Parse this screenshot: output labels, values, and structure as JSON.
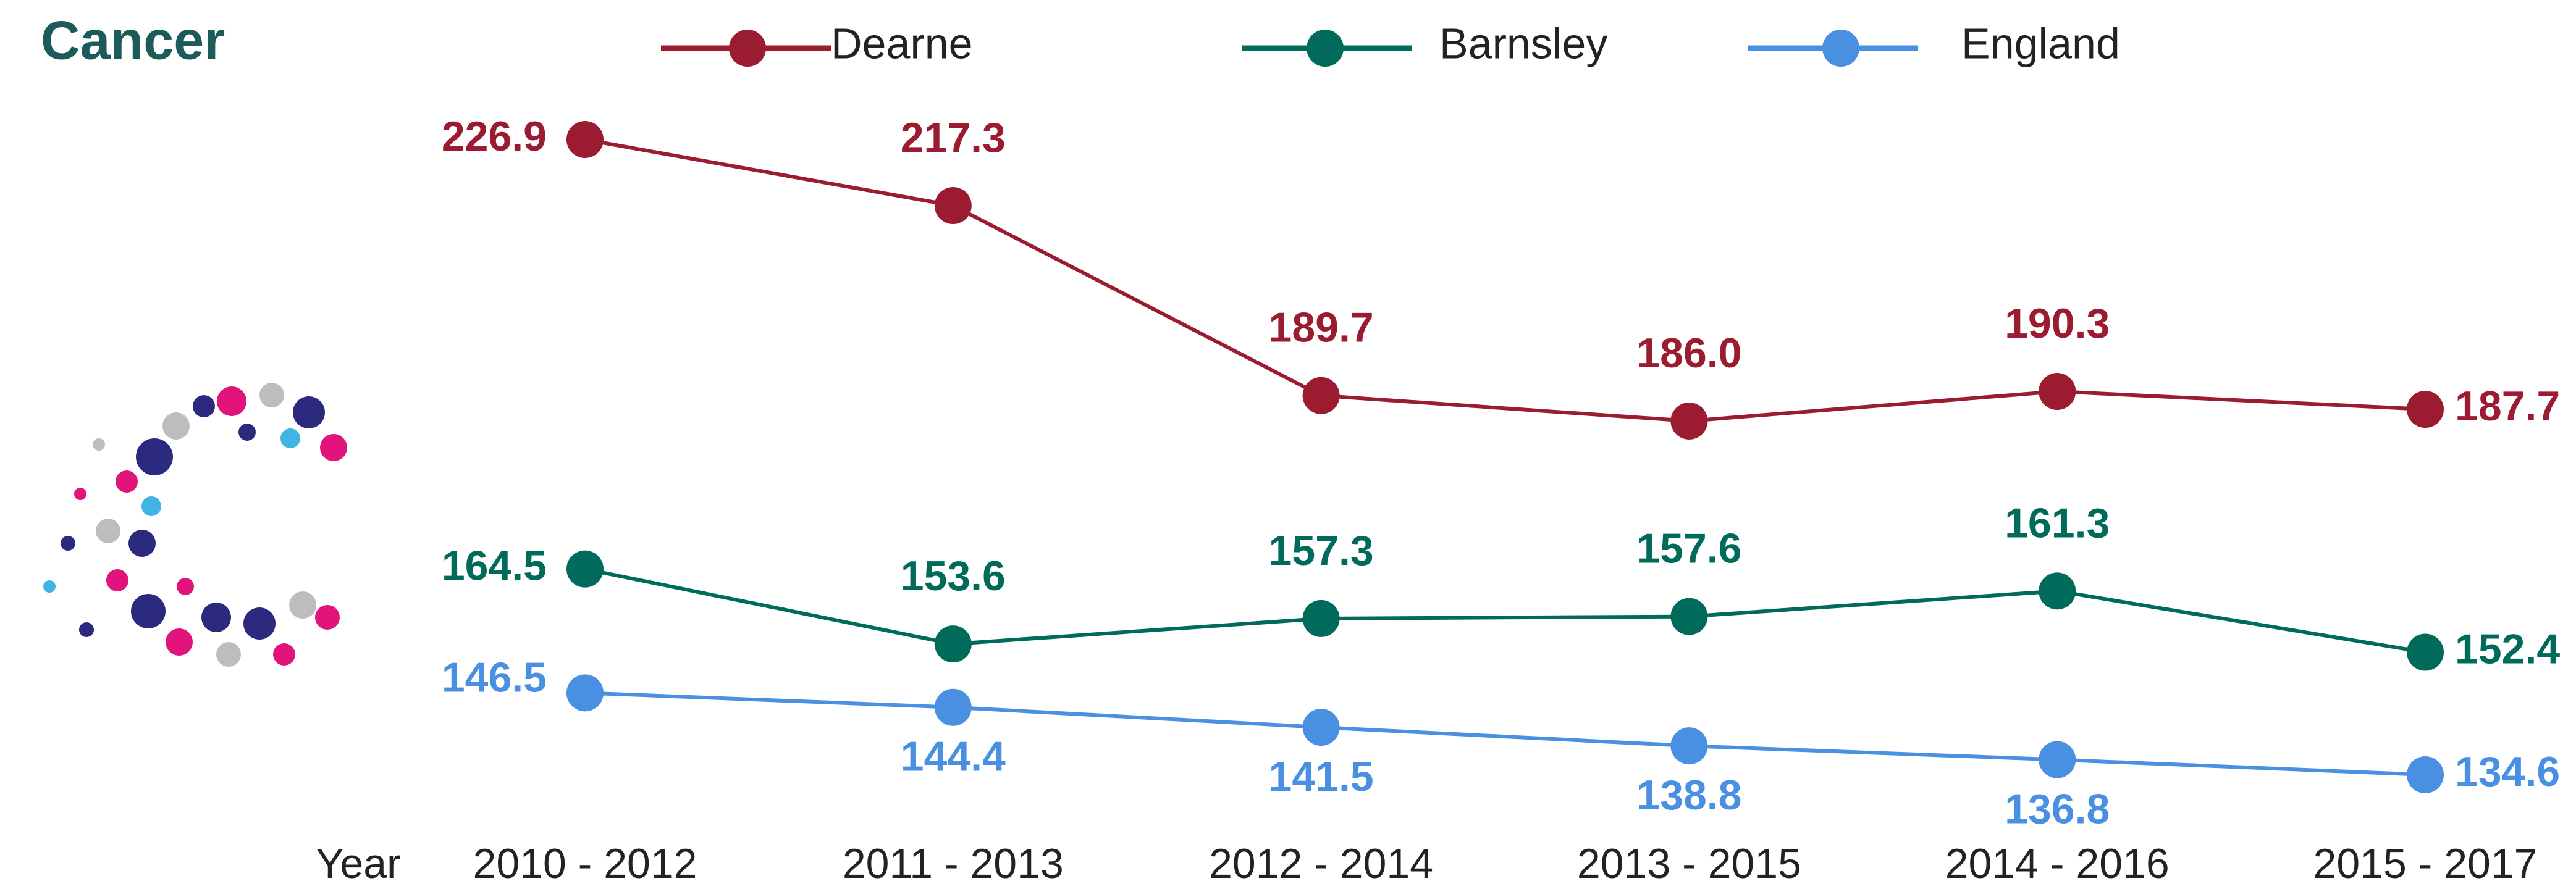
{
  "chart_data": {
    "type": "line",
    "title": "Cancer",
    "x_label": "Year",
    "categories": [
      "2010 - 2012",
      "2011 - 2013",
      "2012 - 2014",
      "2013 - 2015",
      "2014 - 2016",
      "2015 - 2017"
    ],
    "series": [
      {
        "name": "Dearne",
        "color": "#9b1c31",
        "values": [
          226.9,
          217.3,
          189.7,
          186.0,
          190.3,
          187.7
        ],
        "value_labels": [
          "226.9",
          "217.3",
          "189.7",
          "186.0",
          "190.3",
          "187.7"
        ]
      },
      {
        "name": "Barnsley",
        "color": "#006b5a",
        "values": [
          164.5,
          153.6,
          157.3,
          157.6,
          161.3,
          152.4
        ],
        "value_labels": [
          "164.5",
          "153.6",
          "157.3",
          "157.6",
          "161.3",
          "152.4"
        ]
      },
      {
        "name": "England",
        "color": "#4a90e2",
        "values": [
          146.5,
          144.4,
          141.5,
          138.8,
          136.8,
          134.6
        ],
        "value_labels": [
          "146.5",
          "144.4",
          "141.5",
          "138.8",
          "136.8",
          "134.6"
        ]
      }
    ]
  }
}
